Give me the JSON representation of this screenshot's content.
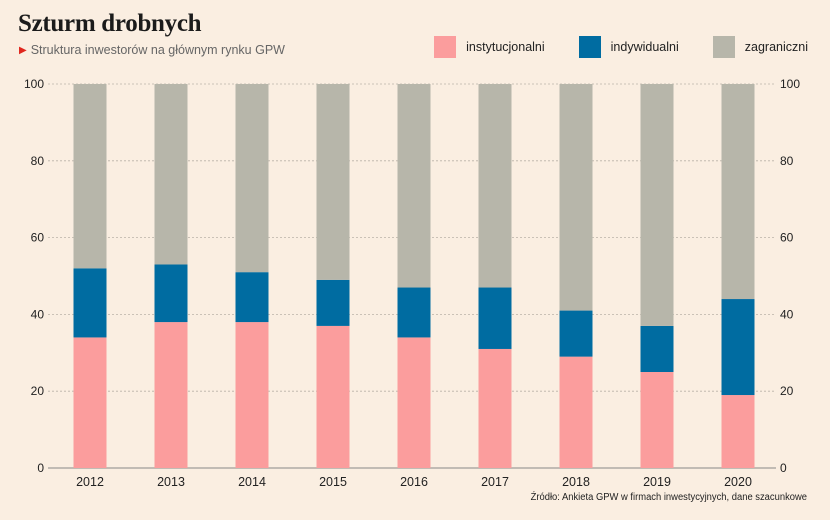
{
  "header": {
    "title": "Szturm drobnych",
    "subtitle": "Struktura inwestorów na głównym rynku GPW"
  },
  "source": "Źródło: Ankieta GPW w firmach inwestycyjnych, dane szacunkowe",
  "colors": {
    "background": "#faeee1",
    "instytucjonalni": "#fb9d9d",
    "indywidualni": "#006ca1",
    "zagraniczni": "#b7b6aa",
    "accent": "#e0261d"
  },
  "chart_data": {
    "type": "bar",
    "stacked": true,
    "categories": [
      "2012",
      "2013",
      "2014",
      "2015",
      "2016",
      "2017",
      "2018",
      "2019",
      "2020"
    ],
    "series": [
      {
        "name": "instytucjonalni",
        "values": [
          34,
          38,
          38,
          37,
          34,
          31,
          29,
          25,
          19
        ]
      },
      {
        "name": "indywidualni",
        "values": [
          18,
          15,
          13,
          12,
          13,
          16,
          12,
          12,
          25
        ]
      },
      {
        "name": "zagraniczni",
        "values": [
          48,
          47,
          49,
          51,
          53,
          53,
          59,
          63,
          56
        ]
      }
    ],
    "ylim": [
      0,
      100
    ],
    "yticks": [
      0,
      20,
      40,
      60,
      80,
      100
    ],
    "grid": true,
    "legend_position": "top-right"
  }
}
